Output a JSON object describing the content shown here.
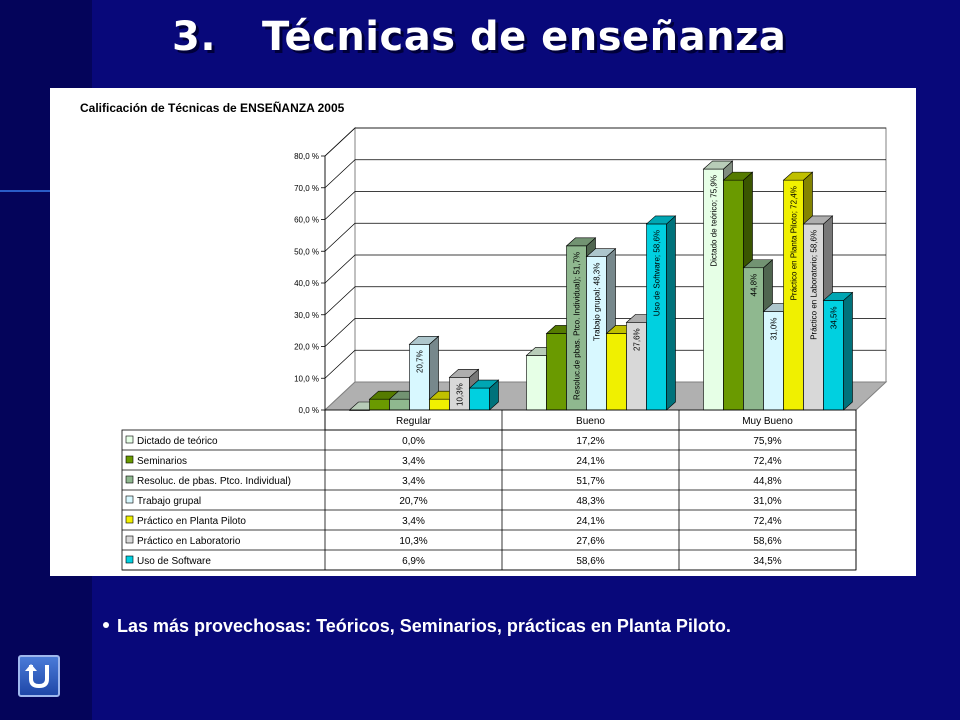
{
  "slide": {
    "title_number": "3.",
    "title_text": "Técnicas de enseñanza",
    "bullet": "Las más provechosas: Teóricos, Seminarios, prácticas en Planta Piloto.",
    "back_icon": "u-turn-back-icon"
  },
  "chart_data": {
    "type": "bar",
    "title": "Calificación de Técnicas de ENSEÑANZA 2005",
    "categories": [
      "Regular",
      "Bueno",
      "Muy Bueno"
    ],
    "ylim": [
      0,
      80
    ],
    "yticks": [
      "0,0 %",
      "10,0 %",
      "20,0 %",
      "30,0 %",
      "40,0 %",
      "50,0 %",
      "60,0 %",
      "70,0 %",
      "80,0 %"
    ],
    "grid": true,
    "legend": "data-table",
    "series": [
      {
        "name": "Dictado de teórico",
        "values": [
          0.0,
          17.2,
          75.9
        ],
        "labels": [
          "0,0%",
          "17,2%",
          "75,9%"
        ],
        "color": "#e6ffe6"
      },
      {
        "name": "Seminarios",
        "values": [
          3.4,
          24.1,
          72.4
        ],
        "labels": [
          "3,4%",
          "24,1%",
          "72,4%"
        ],
        "color": "#6a9a00"
      },
      {
        "name": "Resoluc. de pbas. Ptco. Individual)",
        "values": [
          3.4,
          51.7,
          44.8
        ],
        "labels": [
          "3,4%",
          "51,7%",
          "44,8%"
        ],
        "color": "#8fb88f"
      },
      {
        "name": "Trabajo grupal",
        "values": [
          20.7,
          48.3,
          31.0
        ],
        "labels": [
          "20,7%",
          "48,3%",
          "31,0%"
        ],
        "color": "#d8f8ff"
      },
      {
        "name": "Práctico en Planta Piloto",
        "values": [
          3.4,
          24.1,
          72.4
        ],
        "labels": [
          "3,4%",
          "24,1%",
          "72,4%"
        ],
        "color": "#f0f000"
      },
      {
        "name": "Práctico en Laboratorio",
        "values": [
          10.3,
          27.6,
          58.6
        ],
        "labels": [
          "10,3%",
          "27,6%",
          "58,6%"
        ],
        "color": "#d8d8d8"
      },
      {
        "name": "Uso de Software",
        "values": [
          6.9,
          58.6,
          34.5
        ],
        "labels": [
          "6,9%",
          "58,6%",
          "34,5%"
        ],
        "color": "#00d0e0"
      }
    ],
    "bar_labels": [
      {
        "series": 3,
        "cat": 0,
        "text": "20,7%"
      },
      {
        "series": 5,
        "cat": 0,
        "text": "10,3%"
      },
      {
        "series": 2,
        "cat": 1,
        "text": "Resoluc.de pbas. Ptco. Individual); 51,7%"
      },
      {
        "series": 3,
        "cat": 1,
        "text": "Trabajo grupal; 48,3%"
      },
      {
        "series": 5,
        "cat": 1,
        "text": "27,6%"
      },
      {
        "series": 6,
        "cat": 1,
        "text": "Uso de Software; 58,6%"
      },
      {
        "series": 0,
        "cat": 2,
        "text": "Dictado de teórico; 75,9%"
      },
      {
        "series": 2,
        "cat": 2,
        "text": "44,8%"
      },
      {
        "series": 3,
        "cat": 2,
        "text": "31,0%"
      },
      {
        "series": 4,
        "cat": 2,
        "text": "Práctico en Planta Piloto; 72,4%"
      },
      {
        "series": 5,
        "cat": 2,
        "text": "Práctico en Laboratorio; 58,6%"
      },
      {
        "series": 6,
        "cat": 2,
        "text": "34,5%"
      }
    ]
  }
}
